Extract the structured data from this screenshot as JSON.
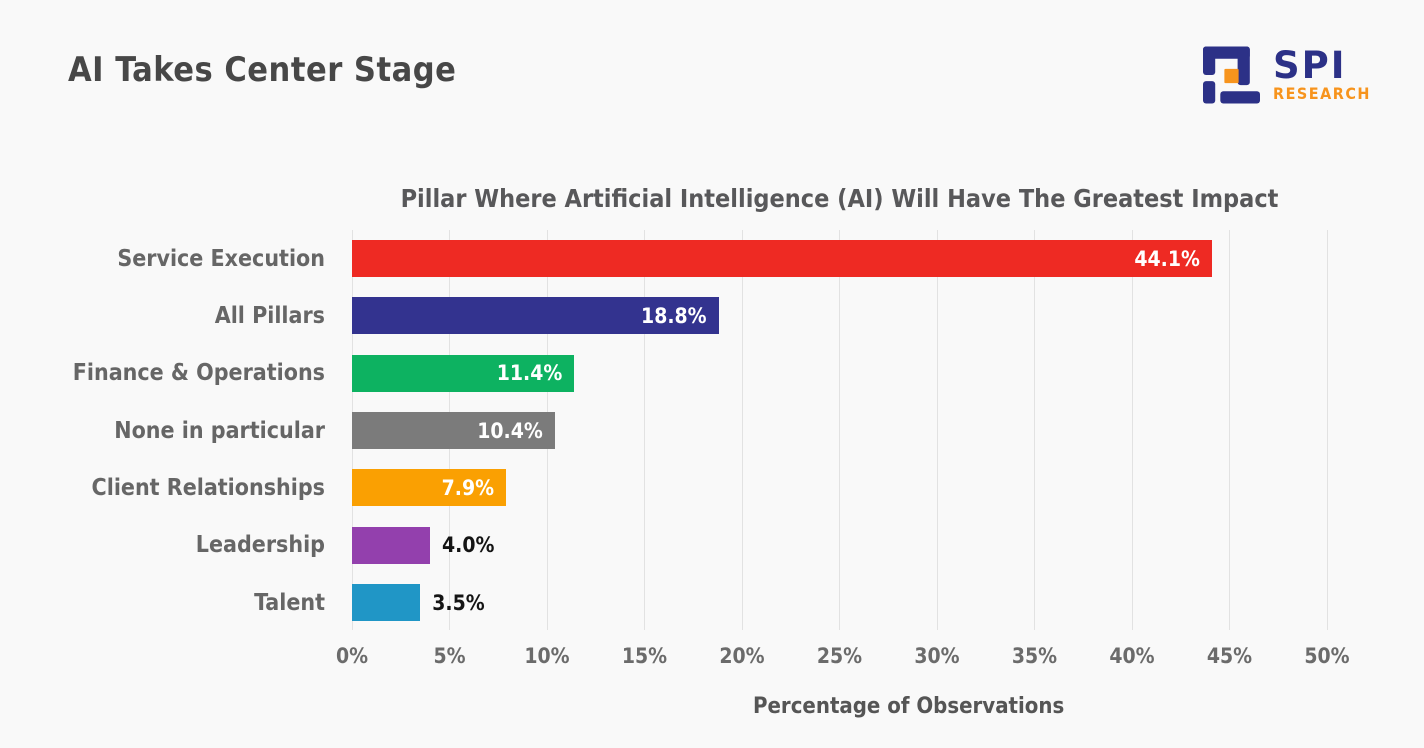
{
  "page": {
    "title": "AI Takes Center Stage",
    "background": "#f9f9f9"
  },
  "logo": {
    "brand": "SPI",
    "sub": "RESEARCH",
    "navy": "#2c3187",
    "orange": "#f7941d"
  },
  "chart_data": {
    "type": "bar",
    "orientation": "horizontal",
    "title": "Pillar Where Artificial Intelligence (AI) Will Have The Greatest Impact",
    "xlabel": "Percentage of Observations",
    "categories": [
      "Service Execution",
      "All Pillars",
      "Finance & Operations",
      "None in particular",
      "Client Relationships",
      "Leadership",
      "Talent"
    ],
    "values": [
      44.1,
      18.8,
      11.4,
      10.4,
      7.9,
      4.0,
      3.5
    ],
    "value_labels": [
      "44.1%",
      "18.8%",
      "11.4%",
      "10.4%",
      "7.9%",
      "4.0%",
      "3.5%"
    ],
    "bar_colors": [
      "#ee2a23",
      "#33338f",
      "#0db261",
      "#7b7b7b",
      "#faa002",
      "#9340ad",
      "#2096c6"
    ],
    "label_inside": [
      true,
      true,
      true,
      true,
      true,
      false,
      false
    ],
    "xlim": [
      0,
      50
    ],
    "xticks": [
      "0%",
      "5%",
      "10%",
      "15%",
      "20%",
      "25%",
      "30%",
      "35%",
      "40%",
      "45%",
      "50%"
    ],
    "grid": true,
    "legend": "none"
  }
}
